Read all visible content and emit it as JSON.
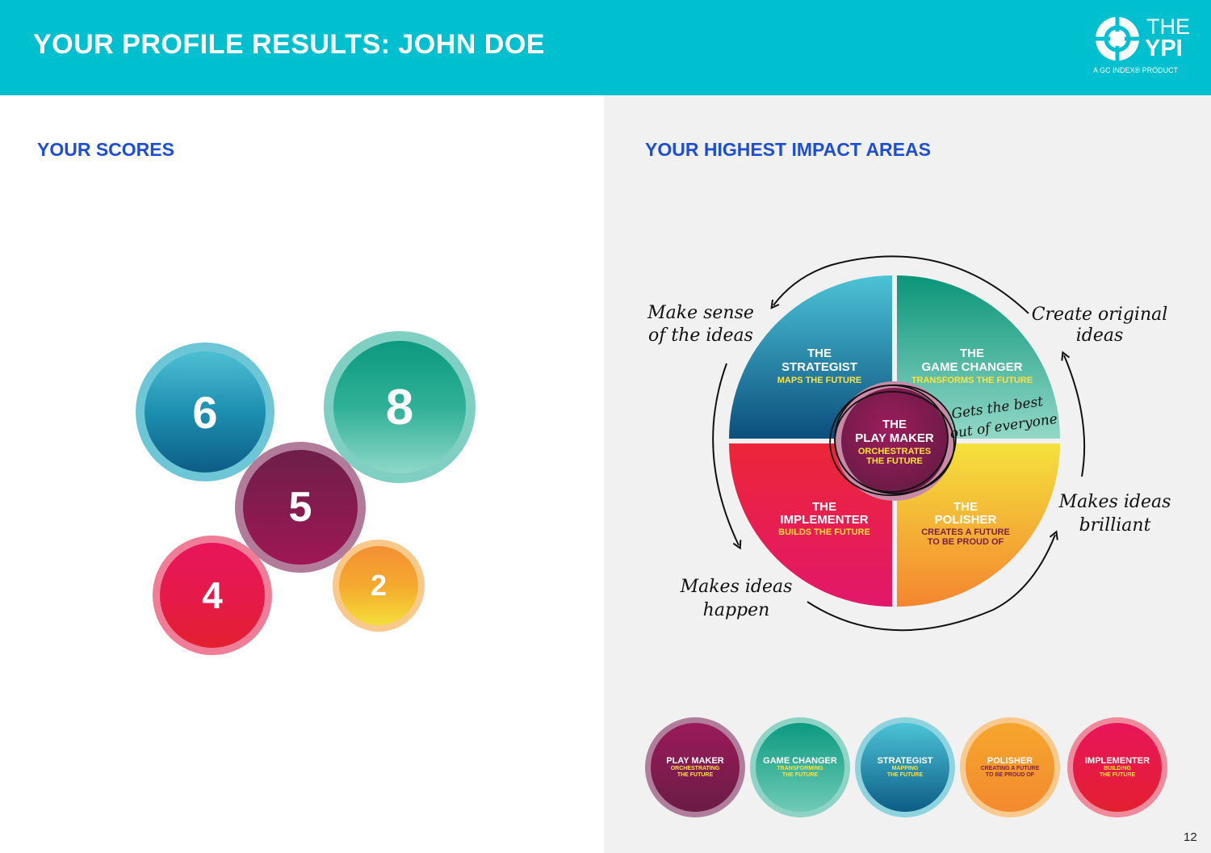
{
  "header": {
    "title": "YOUR PROFILE RESULTS: JOHN DOE",
    "logo": {
      "icon": "ypi-target-icon",
      "line1": "THE",
      "line2": "YPI",
      "tagline": "A GC INDEX® PRODUCT"
    }
  },
  "left": {
    "title": "YOUR SCORES",
    "scores": [
      {
        "value": "6",
        "profile": "strategist",
        "color": "#1f8fb0"
      },
      {
        "value": "8",
        "profile": "game-changer",
        "color": "#129c82"
      },
      {
        "value": "5",
        "profile": "play-maker",
        "color": "#8a1a50"
      },
      {
        "value": "4",
        "profile": "implementer",
        "color": "#e0184a"
      },
      {
        "value": "2",
        "profile": "polisher",
        "color": "#f5a92e"
      }
    ]
  },
  "right": {
    "title": "YOUR HIGHEST IMPACT AREAS",
    "wheel": {
      "strategist": {
        "the": "THE",
        "name": "STRATEGIST",
        "sub": "MAPS THE FUTURE"
      },
      "game_changer": {
        "the": "THE",
        "name": "GAME CHANGER",
        "sub": "TRANSFORMS THE FUTURE"
      },
      "implementer": {
        "the": "THE",
        "name": "IMPLEMENTER",
        "sub": "BUILDS THE FUTURE"
      },
      "polisher": {
        "the": "THE",
        "name": "POLISHER",
        "sub1": "CREATES A FUTURE",
        "sub2": "TO BE PROUD OF"
      },
      "play_maker": {
        "the": "THE",
        "name": "PLAY MAKER",
        "sub1": "ORCHESTRATES",
        "sub2": "THE FUTURE"
      }
    },
    "annotations": {
      "make_sense_1": "Make sense",
      "make_sense_2": "of the ideas",
      "create_1": "Create original",
      "create_2": "ideas",
      "gets_best_1": "Gets the best",
      "gets_best_2": "out of everyone",
      "brilliant_1": "Makes ideas",
      "brilliant_2": "brilliant",
      "happen_1": "Makes ideas",
      "happen_2": "happen"
    },
    "badges": [
      {
        "name": "PLAY MAKER",
        "sub1": "ORCHESTRATING",
        "sub2": "THE FUTURE"
      },
      {
        "name": "GAME CHANGER",
        "sub1": "TRANSFORMING",
        "sub2": "THE FUTURE"
      },
      {
        "name": "STRATEGIST",
        "sub1": "MAPPING",
        "sub2": "THE FUTURE"
      },
      {
        "name": "POLISHER",
        "sub1": "CREATING A FUTURE",
        "sub2": "TO BE PROUD OF"
      },
      {
        "name": "IMPLEMENTER",
        "sub1": "BUILDING",
        "sub2": "THE FUTURE"
      }
    ]
  },
  "page_number": "12"
}
